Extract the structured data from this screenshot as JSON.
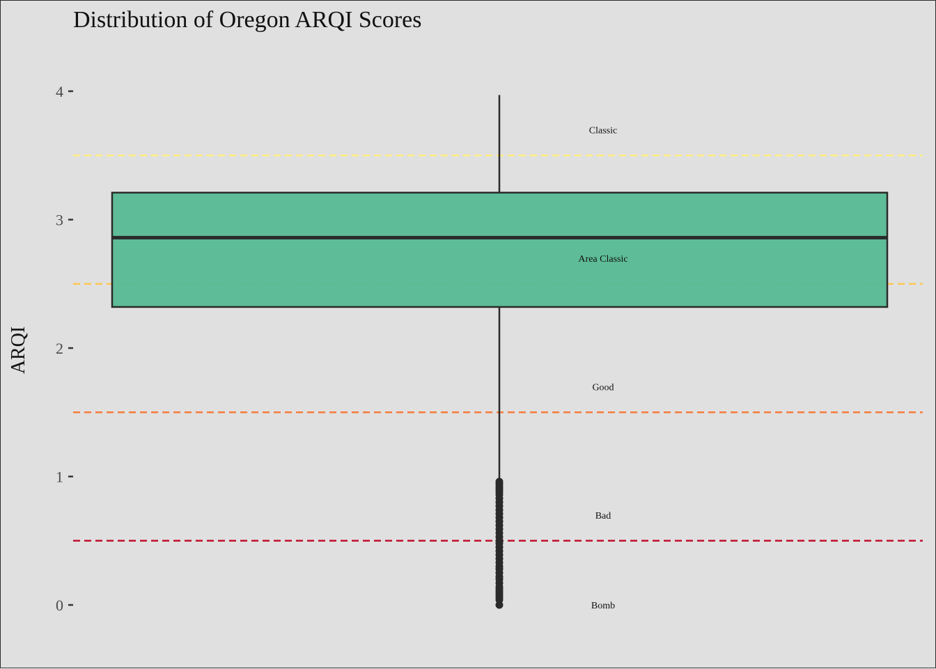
{
  "chart_data": {
    "type": "box",
    "title": "Distribution of Oregon ARQI Scores",
    "xlabel": "",
    "ylabel": "ARQI",
    "ylim": [
      -0.4,
      4.4
    ],
    "y_ticks": [
      0,
      1,
      2,
      3,
      4
    ],
    "y_tick_labels": [
      "0",
      "1",
      "2",
      "3",
      "4"
    ],
    "grid": false,
    "box": {
      "q1": 2.32,
      "median": 2.86,
      "q3": 3.21,
      "whisker_low": 0.98,
      "whisker_high": 3.97,
      "fill": "#56b993",
      "stroke": "#2a2a2a",
      "outliers": [
        0.0,
        0.04,
        0.06,
        0.08,
        0.1,
        0.12,
        0.14,
        0.17,
        0.2,
        0.22,
        0.25,
        0.28,
        0.3,
        0.33,
        0.36,
        0.39,
        0.42,
        0.45,
        0.48,
        0.5,
        0.53,
        0.56,
        0.59,
        0.62,
        0.65,
        0.68,
        0.71,
        0.74,
        0.77,
        0.8,
        0.83,
        0.86,
        0.88,
        0.9,
        0.92,
        0.94,
        0.96
      ]
    },
    "reference_lines": [
      {
        "y": 3.5,
        "color": "#ffee80"
      },
      {
        "y": 2.5,
        "color": "#fdc754"
      },
      {
        "y": 1.5,
        "color": "#f57c3c"
      },
      {
        "y": 0.5,
        "color": "#c0102c"
      }
    ],
    "annotations": [
      {
        "label": "Classic",
        "y": 3.7
      },
      {
        "label": "Area Classic",
        "y": 2.7
      },
      {
        "label": "Good",
        "y": 1.7
      },
      {
        "label": "Bad",
        "y": 0.7
      },
      {
        "label": "Bomb",
        "y": 0.0
      }
    ]
  }
}
